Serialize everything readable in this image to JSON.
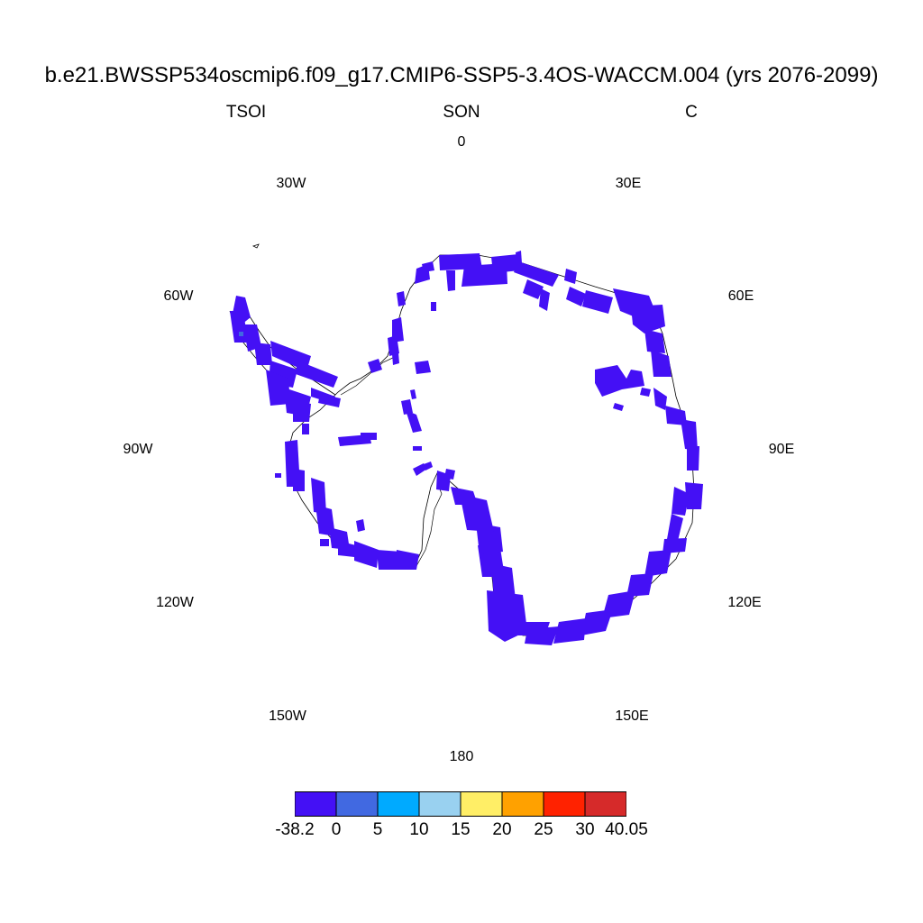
{
  "title": "b.e21.BWSSP534oscmip6.f09_g17.CMIP6-SSP5-3.4OS-WACCM.004 (yrs 2076-2099)",
  "subtitle_left": "TSOI",
  "subtitle_center": "SON",
  "subtitle_right": "C",
  "longitude_labels": [
    "0",
    "30E",
    "60E",
    "90E",
    "120E",
    "150E",
    "180",
    "150W",
    "120W",
    "90W",
    "60W",
    "30W"
  ],
  "colorbar": {
    "colors": [
      "#4410f5",
      "#4169e1",
      "#00aaff",
      "#99d1f0",
      "#ffee66",
      "#ffa100",
      "#ff2200",
      "#d62a2a"
    ],
    "labels": [
      "-38.2",
      "0",
      "5",
      "10",
      "15",
      "20",
      "25",
      "30",
      "40.05"
    ]
  },
  "field_color": "#4410f5",
  "coast_color": "#000000"
}
